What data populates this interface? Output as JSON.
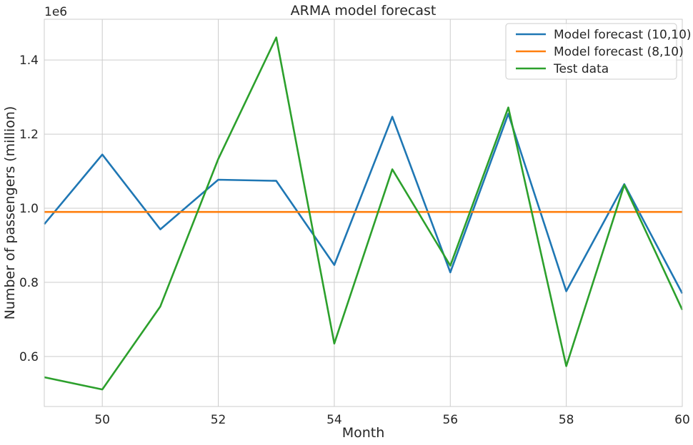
{
  "chart_data": {
    "type": "line",
    "title": "ARMA model forecast",
    "xlabel": "Month",
    "ylabel": "Number of passengers (million)",
    "y_offset_label": "1e6",
    "xlim": [
      49,
      60
    ],
    "ylim": [
      465000,
      1510000
    ],
    "xticks": [
      50,
      52,
      54,
      56,
      58,
      60
    ],
    "yticks": [
      600000,
      800000,
      1000000,
      1200000,
      1400000
    ],
    "ytick_labels": [
      "0.6",
      "0.8",
      "1.0",
      "1.2",
      "1.4"
    ],
    "grid": true,
    "legend_position": "top-right",
    "x": [
      49,
      50,
      51,
      52,
      53,
      54,
      55,
      56,
      57,
      58,
      59,
      60
    ],
    "series": [
      {
        "name": "Model forecast (10,10)",
        "color": "#1f77b4",
        "values": [
          957000,
          1145000,
          943000,
          1077000,
          1074000,
          847000,
          1247000,
          827000,
          1255000,
          776000,
          1065000,
          770000
        ]
      },
      {
        "name": "Model forecast (8,10)",
        "color": "#ff7f0e",
        "values": [
          990000,
          990000,
          990000,
          990000,
          990000,
          990000,
          990000,
          990000,
          990000,
          990000,
          990000,
          990000
        ]
      },
      {
        "name": "Test data",
        "color": "#2ca02c",
        "values": [
          544000,
          511000,
          735000,
          1133000,
          1461000,
          635000,
          1105000,
          845000,
          1272000,
          574000,
          1063000,
          726000
        ]
      }
    ]
  }
}
